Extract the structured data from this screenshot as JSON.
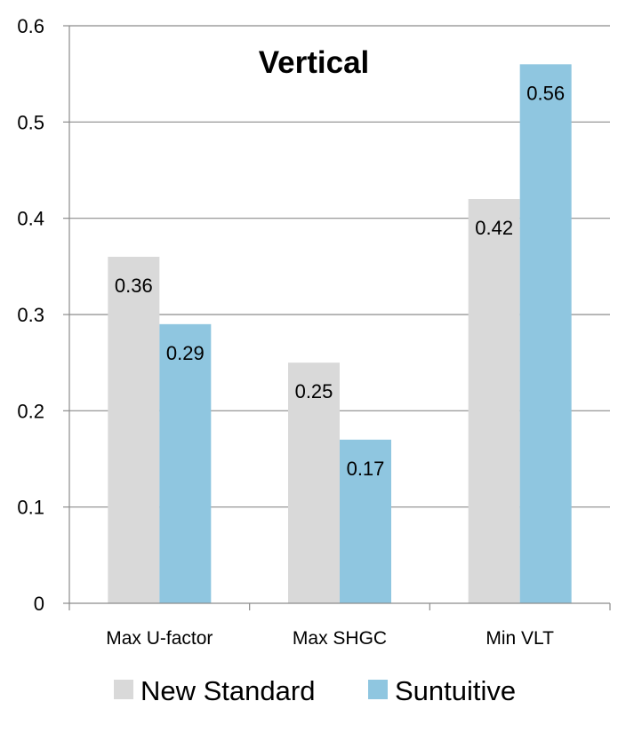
{
  "chart_data": {
    "type": "bar",
    "title": "Vertical",
    "categories": [
      "Max U-factor",
      "Max SHGC",
      "Min VLT"
    ],
    "series": [
      {
        "name": "New Standard",
        "values": [
          0.36,
          0.25,
          0.42
        ],
        "labels": [
          "0.36",
          "0.25",
          "0.42"
        ],
        "color": "#d9d9d9"
      },
      {
        "name": "Suntuitive",
        "values": [
          0.29,
          0.17,
          0.56
        ],
        "labels": [
          "0.29",
          "0.17",
          "0.56"
        ],
        "color": "#8fc6e0"
      }
    ],
    "ylim": [
      0,
      0.6
    ],
    "yticks": [
      0,
      0.1,
      0.2,
      0.3,
      0.4,
      0.5,
      0.6
    ],
    "ytick_labels": [
      "0",
      "0.1",
      "0.2",
      "0.3",
      "0.4",
      "0.5",
      "0.6"
    ],
    "grid": true,
    "legend_position": "bottom",
    "xlabel": "",
    "ylabel": ""
  }
}
